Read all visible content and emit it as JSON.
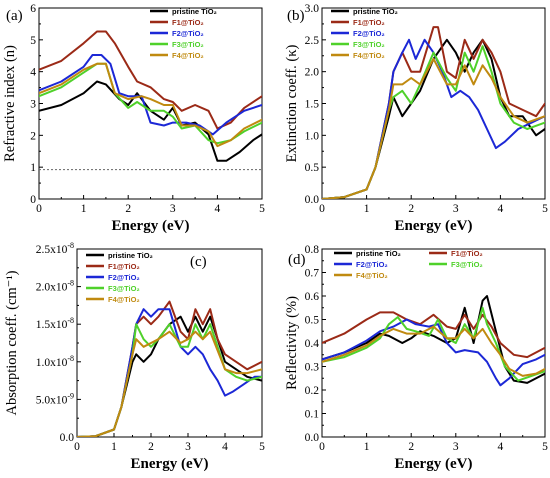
{
  "figure": {
    "colors": {
      "pristine": "#000000",
      "F1": "#9b2a17",
      "F2": "#1c28d6",
      "F3": "#4fd12a",
      "F4": "#c08a10"
    }
  },
  "chart_data": [
    {
      "id": "a",
      "type": "line",
      "panel_label": "(a)",
      "xlabel": "Energy (eV)",
      "ylabel": "Refractive index (n)",
      "xlim": [
        0,
        5
      ],
      "ylim": [
        0,
        6.5
      ],
      "xticks": [
        "0",
        "1",
        "2",
        "3",
        "4",
        "5"
      ],
      "yticks": [
        "0",
        "1",
        "2",
        "3",
        "4",
        "5",
        "6"
      ],
      "legend_position": "top-right",
      "reference_line_y": 1,
      "series": [
        {
          "name": "pristine TiO₂",
          "color": "#000000",
          "x": [
            0,
            0.5,
            1.0,
            1.3,
            1.5,
            1.8,
            2.0,
            2.2,
            2.5,
            2.8,
            3.0,
            3.2,
            3.5,
            3.8,
            4.0,
            4.2,
            4.5,
            4.8,
            5.0
          ],
          "y": [
            3.0,
            3.2,
            3.6,
            4.0,
            3.9,
            3.4,
            3.2,
            3.6,
            3.0,
            2.7,
            3.1,
            2.5,
            2.6,
            2.2,
            1.3,
            1.3,
            1.6,
            2.0,
            2.2
          ]
        },
        {
          "name": "F1@TiO₂",
          "color": "#9b2a17",
          "x": [
            0,
            0.5,
            1.0,
            1.3,
            1.5,
            1.7,
            2.0,
            2.2,
            2.5,
            2.8,
            3.0,
            3.2,
            3.5,
            3.8,
            4.0,
            4.3,
            4.6,
            5.0
          ],
          "y": [
            4.4,
            4.7,
            5.3,
            5.7,
            5.7,
            5.3,
            4.5,
            4.0,
            3.8,
            3.4,
            3.3,
            3.0,
            3.2,
            3.0,
            2.4,
            2.6,
            3.1,
            3.5
          ]
        },
        {
          "name": "F2@TiO₂",
          "color": "#1c28d6",
          "x": [
            0,
            0.5,
            1.0,
            1.2,
            1.4,
            1.6,
            1.8,
            2.0,
            2.3,
            2.5,
            2.8,
            3.0,
            3.3,
            3.6,
            3.9,
            4.2,
            4.6,
            5.0
          ],
          "y": [
            3.7,
            4.0,
            4.5,
            4.9,
            4.9,
            4.6,
            3.6,
            3.5,
            3.5,
            2.6,
            2.5,
            2.6,
            2.6,
            2.5,
            2.2,
            2.6,
            3.0,
            3.2
          ]
        },
        {
          "name": "F3@TiO₂",
          "color": "#4fd12a",
          "x": [
            0,
            0.5,
            1.0,
            1.3,
            1.5,
            1.7,
            2.0,
            2.2,
            2.5,
            2.8,
            3.0,
            3.2,
            3.5,
            3.8,
            4.0,
            4.3,
            4.6,
            5.0
          ],
          "y": [
            3.5,
            3.8,
            4.3,
            4.6,
            4.6,
            3.6,
            3.1,
            3.3,
            3.0,
            3.0,
            2.8,
            2.4,
            2.5,
            2.0,
            1.9,
            2.0,
            2.3,
            2.6
          ]
        },
        {
          "name": "F4@TiO₂",
          "color": "#c08a10",
          "x": [
            0,
            0.5,
            1.0,
            1.3,
            1.5,
            1.7,
            2.0,
            2.3,
            2.5,
            2.8,
            3.0,
            3.2,
            3.5,
            3.8,
            4.0,
            4.3,
            4.6,
            5.0
          ],
          "y": [
            3.6,
            3.9,
            4.4,
            4.6,
            4.6,
            3.6,
            3.4,
            3.5,
            3.4,
            3.2,
            3.2,
            2.5,
            2.5,
            2.3,
            1.8,
            2.0,
            2.4,
            2.7
          ]
        }
      ]
    },
    {
      "id": "b",
      "type": "line",
      "panel_label": "(b)",
      "xlabel": "Energy (eV)",
      "ylabel": "Extinction coeff. (κ)",
      "xlim": [
        0,
        5
      ],
      "ylim": [
        0,
        3.0
      ],
      "xticks": [
        "0",
        "1",
        "2",
        "3",
        "4",
        "5"
      ],
      "yticks": [
        "0.0",
        "0.5",
        "1.0",
        "1.5",
        "2.0",
        "2.5",
        "3.0"
      ],
      "legend_position": "top-left",
      "series": [
        {
          "name": "pristine TiO₂",
          "color": "#000000",
          "x": [
            0,
            0.5,
            1.0,
            1.2,
            1.5,
            1.6,
            1.8,
            2.0,
            2.2,
            2.5,
            2.8,
            3.0,
            3.2,
            3.4,
            3.6,
            3.8,
            4.0,
            4.2,
            4.5,
            4.8,
            5.0
          ],
          "y": [
            0,
            0.03,
            0.15,
            0.5,
            1.3,
            1.6,
            1.3,
            1.5,
            1.7,
            2.2,
            2.5,
            2.3,
            2.0,
            2.3,
            2.5,
            2.2,
            1.6,
            1.3,
            1.3,
            1.0,
            1.1
          ]
        },
        {
          "name": "F1@TiO₂",
          "color": "#9b2a17",
          "x": [
            0,
            0.5,
            1.0,
            1.2,
            1.5,
            1.6,
            1.8,
            2.0,
            2.2,
            2.5,
            2.6,
            2.8,
            3.0,
            3.2,
            3.4,
            3.6,
            3.8,
            4.0,
            4.2,
            4.5,
            4.8,
            5.0
          ],
          "y": [
            0,
            0.03,
            0.15,
            0.5,
            1.5,
            2.0,
            2.3,
            2.0,
            2.0,
            2.7,
            2.7,
            2.0,
            1.9,
            2.5,
            2.2,
            2.5,
            2.3,
            2.0,
            1.5,
            1.4,
            1.3,
            1.5
          ]
        },
        {
          "name": "F2@TiO₂",
          "color": "#1c28d6",
          "x": [
            0,
            0.5,
            1.0,
            1.2,
            1.5,
            1.6,
            1.8,
            1.95,
            2.1,
            2.3,
            2.5,
            2.7,
            2.9,
            3.1,
            3.3,
            3.5,
            3.7,
            3.9,
            4.1,
            4.4,
            4.7,
            5.0
          ],
          "y": [
            0,
            0.03,
            0.15,
            0.5,
            1.5,
            2.0,
            2.3,
            2.5,
            2.2,
            2.5,
            2.3,
            2.0,
            1.6,
            1.7,
            1.6,
            1.4,
            1.1,
            0.8,
            0.9,
            1.1,
            1.2,
            1.3
          ]
        },
        {
          "name": "F3@TiO₂",
          "color": "#4fd12a",
          "x": [
            0,
            0.5,
            1.0,
            1.2,
            1.5,
            1.6,
            1.8,
            2.0,
            2.2,
            2.5,
            2.8,
            3.0,
            3.2,
            3.4,
            3.6,
            3.8,
            4.0,
            4.3,
            4.6,
            5.0
          ],
          "y": [
            0,
            0.03,
            0.15,
            0.5,
            1.4,
            1.6,
            1.7,
            1.5,
            1.8,
            2.3,
            1.9,
            1.7,
            2.3,
            2.0,
            2.4,
            2.0,
            1.5,
            1.2,
            1.1,
            1.2
          ]
        },
        {
          "name": "F4@TiO₂",
          "color": "#c08a10",
          "x": [
            0,
            0.5,
            1.0,
            1.2,
            1.5,
            1.6,
            1.8,
            2.0,
            2.2,
            2.5,
            2.8,
            3.0,
            3.2,
            3.4,
            3.6,
            3.8,
            4.0,
            4.3,
            4.6,
            5.0
          ],
          "y": [
            0,
            0.03,
            0.15,
            0.5,
            1.4,
            1.8,
            1.8,
            1.9,
            1.8,
            2.2,
            1.8,
            1.8,
            2.1,
            1.8,
            2.1,
            1.9,
            1.6,
            1.3,
            1.2,
            1.3
          ]
        }
      ]
    },
    {
      "id": "c",
      "type": "line",
      "panel_label": "(c)",
      "xlabel": "Energy (eV)",
      "ylabel": "Absorption coeff. (cm⁻¹)",
      "xlim": [
        0,
        5
      ],
      "ylim": [
        0,
        2.5e-08
      ],
      "xticks": [
        "0",
        "1",
        "2",
        "3",
        "4",
        "5"
      ],
      "yticks": [
        "0.0",
        "5.0x10⁻⁹",
        "1.0x10⁻⁸",
        "1.5x10⁻⁸",
        "2.0x10⁻⁸",
        "2.5x10⁻⁸"
      ],
      "legend_position": "top-left",
      "series": [
        {
          "name": "pristine TiO₂",
          "color": "#000000",
          "x": [
            0,
            0.5,
            1.0,
            1.2,
            1.5,
            1.6,
            1.8,
            2.0,
            2.2,
            2.5,
            2.8,
            3.0,
            3.2,
            3.4,
            3.6,
            3.8,
            4.0,
            4.3,
            4.6,
            5.0
          ],
          "y": [
            0,
            1e-10,
            1e-09,
            4e-09,
            1e-08,
            1.1e-08,
            1e-08,
            1.1e-08,
            1.3e-08,
            1.5e-08,
            1.6e-08,
            1.4e-08,
            1.6e-08,
            1.4e-08,
            1.6e-08,
            1.3e-08,
            1e-08,
            9e-09,
            8e-09,
            7.5e-09
          ]
        },
        {
          "name": "F1@TiO₂",
          "color": "#9b2a17",
          "x": [
            0,
            0.5,
            1.0,
            1.2,
            1.5,
            1.6,
            1.8,
            2.0,
            2.2,
            2.5,
            2.8,
            3.0,
            3.2,
            3.4,
            3.6,
            3.8,
            4.0,
            4.3,
            4.6,
            5.0
          ],
          "y": [
            0,
            1e-10,
            1e-09,
            4e-09,
            1.2e-08,
            1.5e-08,
            1.6e-08,
            1.5e-08,
            1.6e-08,
            1.8e-08,
            1.4e-08,
            1.3e-08,
            1.7e-08,
            1.5e-08,
            1.7e-08,
            1.3e-08,
            1.1e-08,
            1e-08,
            9e-09,
            1e-08
          ]
        },
        {
          "name": "F2@TiO₂",
          "color": "#1c28d6",
          "x": [
            0,
            0.5,
            1.0,
            1.2,
            1.5,
            1.6,
            1.8,
            2.0,
            2.2,
            2.5,
            2.8,
            3.0,
            3.2,
            3.4,
            3.6,
            3.8,
            4.0,
            4.2,
            4.5,
            4.8,
            5.0
          ],
          "y": [
            0,
            1e-10,
            1e-09,
            4e-09,
            1.2e-08,
            1.5e-08,
            1.7e-08,
            1.6e-08,
            1.7e-08,
            1.7e-08,
            1.2e-08,
            1.1e-08,
            1.2e-08,
            1.1e-08,
            9e-09,
            7.5e-09,
            5.5e-09,
            6e-09,
            7e-09,
            8e-09,
            8e-09
          ]
        },
        {
          "name": "F3@TiO₂",
          "color": "#4fd12a",
          "x": [
            0,
            0.5,
            1.0,
            1.2,
            1.5,
            1.6,
            1.8,
            2.0,
            2.2,
            2.5,
            2.8,
            3.0,
            3.2,
            3.4,
            3.6,
            3.8,
            4.0,
            4.3,
            4.6,
            5.0
          ],
          "y": [
            0,
            1e-10,
            1e-09,
            4e-09,
            1.1e-08,
            1.5e-08,
            1.3e-08,
            1.2e-08,
            1.3e-08,
            1.5e-08,
            1.2e-08,
            1.2e-08,
            1.5e-08,
            1.3e-08,
            1.5e-08,
            1.2e-08,
            9e-09,
            8e-09,
            7.5e-09,
            8e-09
          ]
        },
        {
          "name": "F4@TiO₂",
          "color": "#c08a10",
          "x": [
            0,
            0.5,
            1.0,
            1.2,
            1.5,
            1.6,
            1.8,
            2.0,
            2.2,
            2.5,
            2.8,
            3.0,
            3.2,
            3.4,
            3.6,
            3.8,
            4.0,
            4.3,
            4.6,
            5.0
          ],
          "y": [
            0,
            1e-10,
            1e-09,
            4e-09,
            1.1e-08,
            1.3e-08,
            1.2e-08,
            1.25e-08,
            1.3e-08,
            1.4e-08,
            1.25e-08,
            1.3e-08,
            1.4e-08,
            1.3e-08,
            1.4e-08,
            1.15e-08,
            9e-09,
            8.5e-09,
            8.5e-09,
            9e-09
          ]
        }
      ]
    },
    {
      "id": "d",
      "type": "line",
      "panel_label": "(d)",
      "xlabel": "Energy (eV)",
      "ylabel": "Reflectivity (%)",
      "xlim": [
        0,
        5
      ],
      "ylim": [
        0,
        0.8
      ],
      "xticks": [
        "0",
        "1",
        "2",
        "3",
        "4",
        "5"
      ],
      "yticks": [
        "0.0",
        "0.1",
        "0.2",
        "0.3",
        "0.4",
        "0.5",
        "0.6",
        "0.7",
        "0.8"
      ],
      "legend_position": "top",
      "series": [
        {
          "name": "pristine TiO₂",
          "color": "#000000",
          "x": [
            0,
            0.5,
            1.0,
            1.3,
            1.5,
            1.8,
            2.0,
            2.2,
            2.5,
            2.8,
            3.0,
            3.2,
            3.4,
            3.6,
            3.7,
            3.9,
            4.1,
            4.3,
            4.6,
            5.0
          ],
          "y": [
            0.33,
            0.36,
            0.4,
            0.44,
            0.43,
            0.4,
            0.42,
            0.45,
            0.43,
            0.4,
            0.42,
            0.55,
            0.4,
            0.58,
            0.6,
            0.45,
            0.3,
            0.24,
            0.23,
            0.27
          ]
        },
        {
          "name": "F1@TiO₂",
          "color": "#9b2a17",
          "x": [
            0,
            0.5,
            1.0,
            1.3,
            1.6,
            1.9,
            2.2,
            2.5,
            2.8,
            3.0,
            3.2,
            3.4,
            3.6,
            3.8,
            4.0,
            4.3,
            4.6,
            5.0
          ],
          "y": [
            0.4,
            0.44,
            0.5,
            0.53,
            0.53,
            0.5,
            0.48,
            0.52,
            0.47,
            0.46,
            0.52,
            0.46,
            0.52,
            0.47,
            0.4,
            0.35,
            0.34,
            0.38
          ]
        },
        {
          "name": "F2@TiO₂",
          "color": "#1c28d6",
          "x": [
            0,
            0.5,
            1.0,
            1.3,
            1.6,
            1.9,
            2.1,
            2.4,
            2.6,
            2.8,
            3.0,
            3.2,
            3.5,
            3.7,
            3.9,
            4.0,
            4.2,
            4.5,
            4.8,
            5.0
          ],
          "y": [
            0.33,
            0.36,
            0.41,
            0.45,
            0.47,
            0.5,
            0.48,
            0.47,
            0.48,
            0.4,
            0.36,
            0.37,
            0.36,
            0.32,
            0.25,
            0.22,
            0.25,
            0.31,
            0.33,
            0.35
          ]
        },
        {
          "name": "F3@TiO₂",
          "color": "#4fd12a",
          "x": [
            0,
            0.5,
            1.0,
            1.3,
            1.5,
            1.7,
            1.9,
            2.1,
            2.4,
            2.6,
            2.8,
            3.0,
            3.2,
            3.4,
            3.6,
            3.7,
            3.9,
            4.1,
            4.4,
            4.7,
            5.0
          ],
          "y": [
            0.32,
            0.34,
            0.38,
            0.42,
            0.48,
            0.51,
            0.46,
            0.45,
            0.43,
            0.5,
            0.42,
            0.4,
            0.48,
            0.42,
            0.55,
            0.48,
            0.4,
            0.3,
            0.24,
            0.26,
            0.28
          ]
        },
        {
          "name": "F4@TiO₂",
          "color": "#c08a10",
          "x": [
            0,
            0.5,
            1.0,
            1.3,
            1.6,
            1.9,
            2.2,
            2.5,
            2.8,
            3.0,
            3.2,
            3.4,
            3.6,
            3.8,
            4.0,
            4.2,
            4.5,
            4.8,
            5.0
          ],
          "y": [
            0.32,
            0.35,
            0.39,
            0.43,
            0.46,
            0.44,
            0.44,
            0.47,
            0.42,
            0.42,
            0.46,
            0.42,
            0.46,
            0.4,
            0.35,
            0.29,
            0.26,
            0.27,
            0.29
          ]
        }
      ]
    }
  ]
}
